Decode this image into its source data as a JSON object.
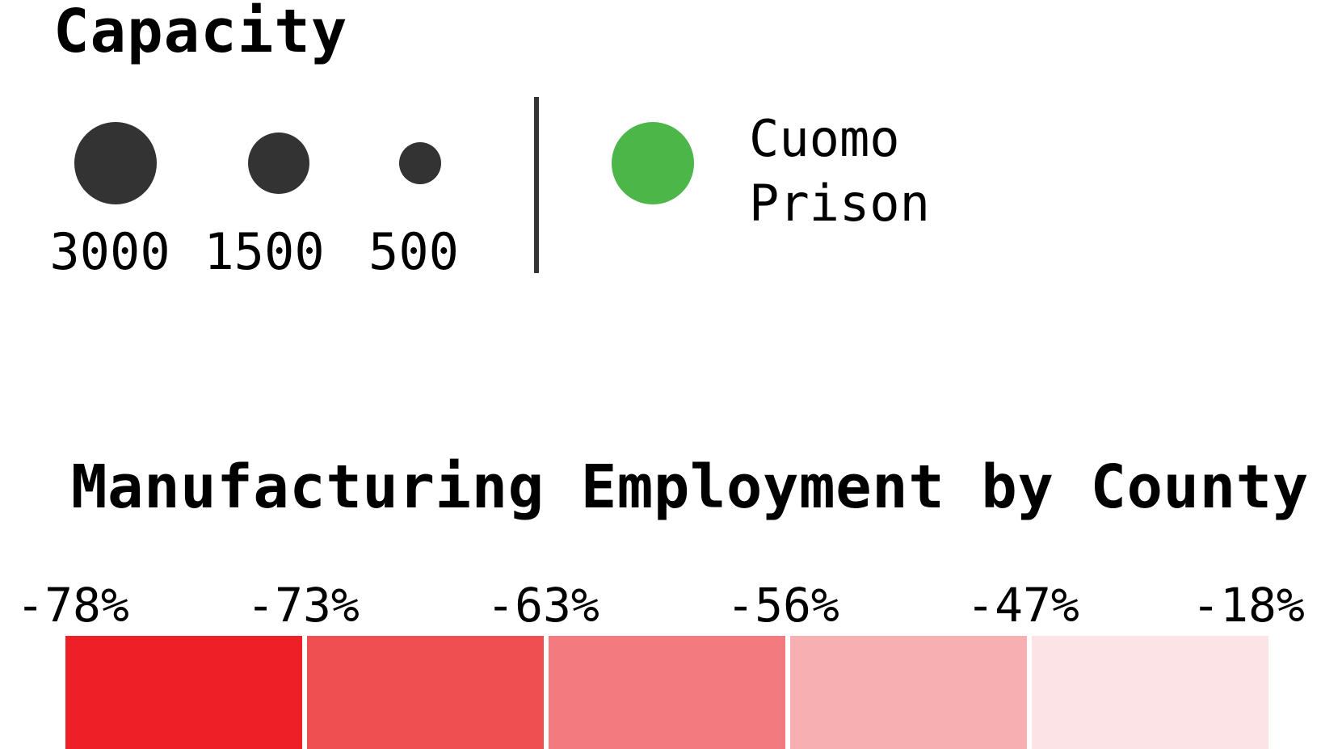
{
  "capacity_legend": {
    "title": "Capacity",
    "sizes": [
      {
        "label": "3000",
        "value": 3000
      },
      {
        "label": "1500",
        "value": 1500
      },
      {
        "label": "500",
        "value": 500
      }
    ],
    "circle_color": "#333333"
  },
  "cuomo_legend": {
    "label_line1": "Cuomo",
    "label_line2": "Prison",
    "color": "#4cb648"
  },
  "manufacturing_legend": {
    "title": "Manufacturing Employment by County",
    "ticks": [
      "-78%",
      "-73%",
      "-63%",
      "-56%",
      "-47%",
      "-18%"
    ],
    "bin_colors": [
      "#ef1f27",
      "#f04f52",
      "#f37b7f",
      "#f7afb2",
      "#fce3e5"
    ]
  }
}
